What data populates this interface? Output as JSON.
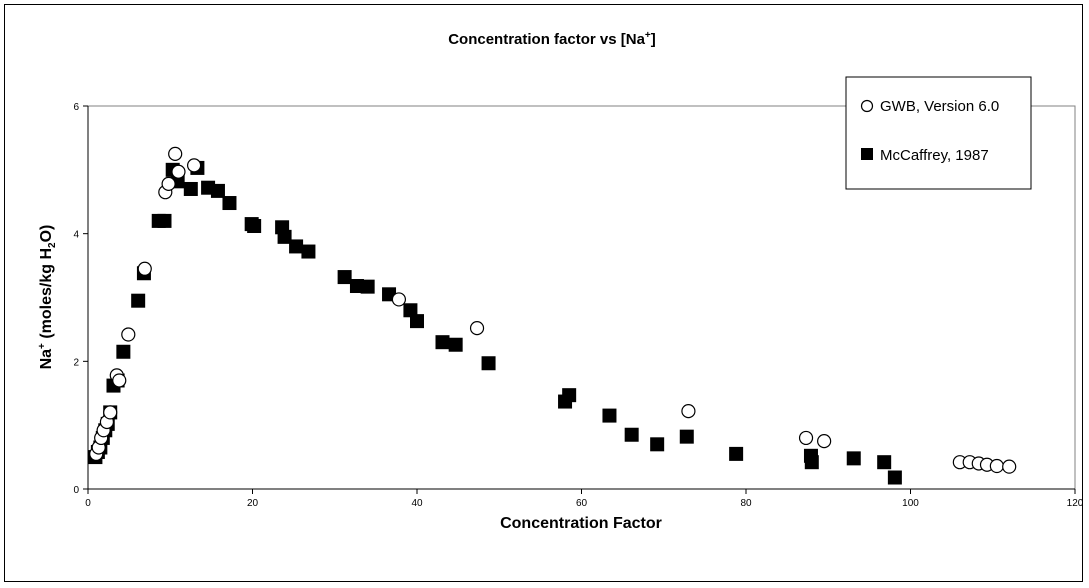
{
  "chart_data": {
    "type": "scatter",
    "title": "Concentration factor vs [Na",
    "title_sup": "+",
    "title_end": "]",
    "xlabel": "Concentration Factor",
    "ylabel_parts": {
      "a": "Na",
      "a_sup": "+",
      "b": " (moles/kg H",
      "b_sub": "2",
      "c": "O)"
    },
    "xlim": [
      0,
      120
    ],
    "ylim": [
      0,
      6
    ],
    "x_ticks": [
      "0",
      "20",
      "40",
      "60",
      "80",
      "100",
      "120"
    ],
    "y_ticks": [
      "0",
      "2",
      "4",
      "6"
    ],
    "x_tick_values": [
      0,
      20,
      40,
      60,
      80,
      100,
      120
    ],
    "y_tick_values": [
      0,
      2,
      4,
      6
    ],
    "grid": false,
    "legend_position": "top-right",
    "series": [
      {
        "name": "GWB, Version 6.0",
        "marker": "open-circle",
        "points": [
          [
            1.0,
            0.55
          ],
          [
            1.3,
            0.65
          ],
          [
            1.6,
            0.8
          ],
          [
            1.9,
            0.92
          ],
          [
            2.3,
            1.05
          ],
          [
            2.7,
            1.2
          ],
          [
            3.5,
            1.78
          ],
          [
            3.8,
            1.7
          ],
          [
            4.9,
            2.42
          ],
          [
            6.9,
            3.45
          ],
          [
            9.4,
            4.65
          ],
          [
            9.8,
            4.78
          ],
          [
            10.6,
            5.25
          ],
          [
            11.0,
            4.97
          ],
          [
            12.9,
            5.07
          ],
          [
            37.8,
            2.97
          ],
          [
            47.3,
            2.52
          ],
          [
            73.0,
            1.22
          ],
          [
            87.3,
            0.8
          ],
          [
            89.5,
            0.75
          ],
          [
            106.0,
            0.42
          ],
          [
            107.2,
            0.42
          ],
          [
            108.3,
            0.4
          ],
          [
            109.3,
            0.38
          ],
          [
            110.5,
            0.36
          ],
          [
            112.0,
            0.35
          ]
        ]
      },
      {
        "name": "McCaffrey, 1987",
        "marker": "filled-square",
        "points": [
          [
            0.9,
            0.5
          ],
          [
            1.2,
            0.58
          ],
          [
            1.5,
            0.65
          ],
          [
            1.8,
            0.8
          ],
          [
            2.1,
            0.92
          ],
          [
            2.4,
            1.02
          ],
          [
            2.7,
            1.2
          ],
          [
            3.1,
            1.62
          ],
          [
            3.6,
            1.7
          ],
          [
            4.3,
            2.15
          ],
          [
            6.1,
            2.95
          ],
          [
            6.8,
            3.38
          ],
          [
            8.6,
            4.2
          ],
          [
            9.3,
            4.2
          ],
          [
            10.3,
            5.0
          ],
          [
            10.9,
            4.82
          ],
          [
            12.5,
            4.7
          ],
          [
            13.3,
            5.03
          ],
          [
            14.6,
            4.72
          ],
          [
            15.8,
            4.67
          ],
          [
            17.2,
            4.48
          ],
          [
            19.9,
            4.15
          ],
          [
            20.2,
            4.12
          ],
          [
            23.6,
            4.1
          ],
          [
            23.9,
            3.95
          ],
          [
            25.3,
            3.8
          ],
          [
            26.8,
            3.72
          ],
          [
            31.2,
            3.32
          ],
          [
            32.7,
            3.18
          ],
          [
            34.0,
            3.17
          ],
          [
            36.6,
            3.05
          ],
          [
            39.2,
            2.8
          ],
          [
            40.0,
            2.63
          ],
          [
            43.1,
            2.3
          ],
          [
            44.7,
            2.26
          ],
          [
            48.7,
            1.97
          ],
          [
            58.0,
            1.37
          ],
          [
            58.5,
            1.47
          ],
          [
            63.4,
            1.15
          ],
          [
            66.1,
            0.85
          ],
          [
            69.2,
            0.7
          ],
          [
            72.8,
            0.82
          ],
          [
            78.8,
            0.55
          ],
          [
            87.9,
            0.52
          ],
          [
            88.0,
            0.42
          ],
          [
            93.1,
            0.48
          ],
          [
            96.8,
            0.42
          ],
          [
            98.1,
            0.18
          ]
        ]
      }
    ]
  }
}
